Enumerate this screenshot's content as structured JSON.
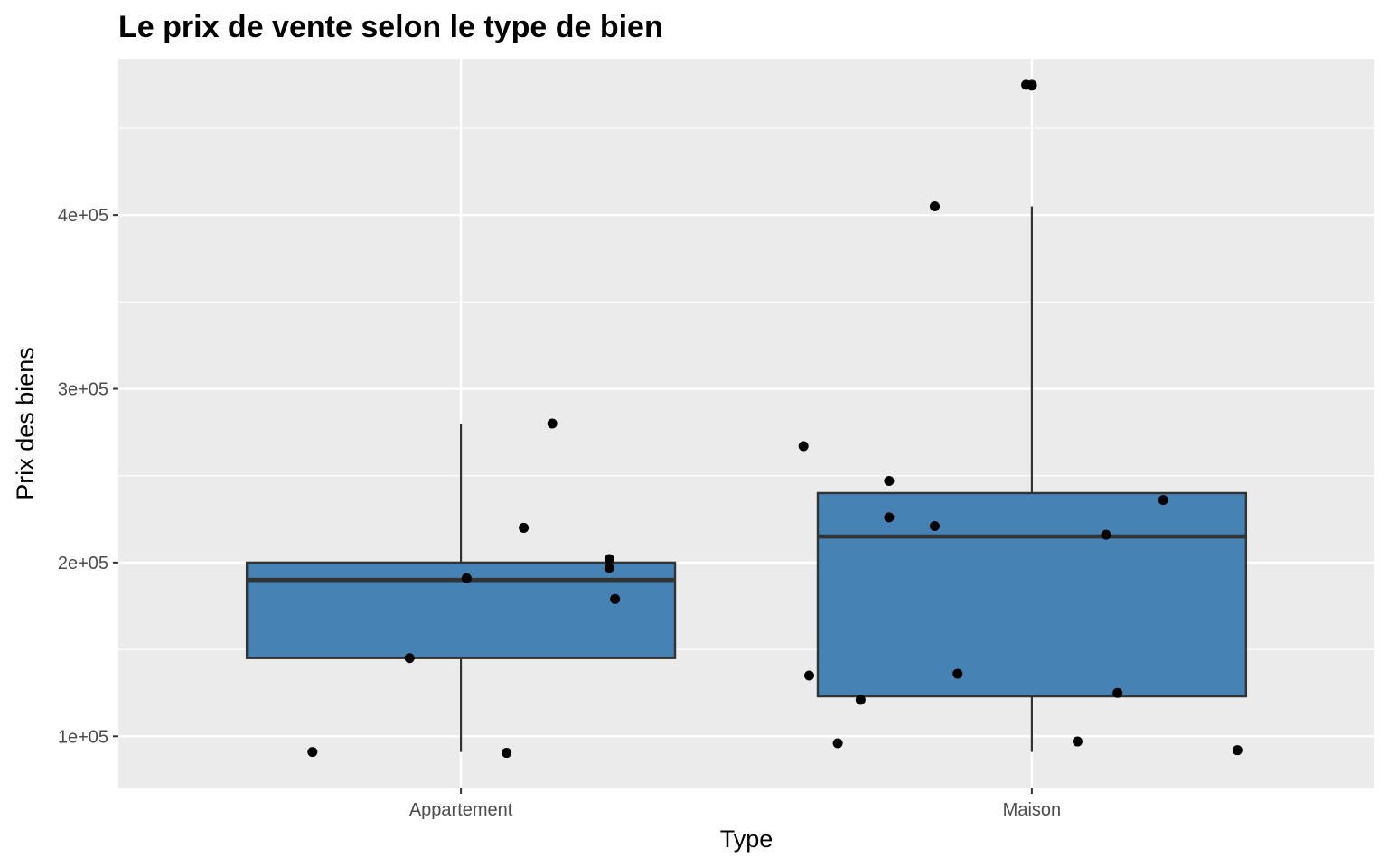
{
  "chart_data": {
    "type": "boxplot",
    "title": "Le prix de vente selon le type de bien",
    "xlabel": "Type",
    "ylabel": "Prix des biens",
    "categories": [
      "Appartement",
      "Maison"
    ],
    "ylim": [
      70000,
      490000
    ],
    "y_ticks": [
      100000,
      200000,
      300000,
      400000
    ],
    "y_tick_labels": [
      "1e+05",
      "2e+05",
      "3e+05",
      "4e+05"
    ],
    "grid": true,
    "legend": "none",
    "colors": {
      "panel_background": "#EBEBEB",
      "grid": "#FFFFFF",
      "box_fill": "#4682B4",
      "box_outline": "#333333",
      "points": "#000000"
    },
    "boxes": [
      {
        "category": "Appartement",
        "lower_whisker": 91000,
        "q1": 145000,
        "median": 190000,
        "q3": 200000,
        "upper_whisker": 280000,
        "outliers": []
      },
      {
        "category": "Maison",
        "lower_whisker": 91000,
        "q1": 123000,
        "median": 215000,
        "q3": 240000,
        "upper_whisker": 405000,
        "outliers": [
          475000,
          475000
        ]
      }
    ],
    "points": [
      {
        "category": "Appartement",
        "x": 0.74,
        "y": 91000
      },
      {
        "category": "Appartement",
        "x": 0.91,
        "y": 145000
      },
      {
        "category": "Appartement",
        "x": 1.01,
        "y": 191000
      },
      {
        "category": "Appartement",
        "x": 1.08,
        "y": 90500
      },
      {
        "category": "Appartement",
        "x": 1.11,
        "y": 220000
      },
      {
        "category": "Appartement",
        "x": 1.16,
        "y": 280000
      },
      {
        "category": "Appartement",
        "x": 1.26,
        "y": 202000
      },
      {
        "category": "Appartement",
        "x": 1.26,
        "y": 197000
      },
      {
        "category": "Appartement",
        "x": 1.27,
        "y": 179000
      },
      {
        "category": "Maison",
        "x": 1.6,
        "y": 267000
      },
      {
        "category": "Maison",
        "x": 1.61,
        "y": 135000
      },
      {
        "category": "Maison",
        "x": 1.66,
        "y": 96000
      },
      {
        "category": "Maison",
        "x": 1.7,
        "y": 121000
      },
      {
        "category": "Maison",
        "x": 1.75,
        "y": 226000
      },
      {
        "category": "Maison",
        "x": 1.75,
        "y": 247000
      },
      {
        "category": "Maison",
        "x": 1.83,
        "y": 405000
      },
      {
        "category": "Maison",
        "x": 1.83,
        "y": 221000
      },
      {
        "category": "Maison",
        "x": 1.87,
        "y": 136000
      },
      {
        "category": "Maison",
        "x": 1.99,
        "y": 475000
      },
      {
        "category": "Maison",
        "x": 2.0,
        "y": 474500
      },
      {
        "category": "Maison",
        "x": 2.08,
        "y": 97000
      },
      {
        "category": "Maison",
        "x": 2.13,
        "y": 216000
      },
      {
        "category": "Maison",
        "x": 2.15,
        "y": 125000
      },
      {
        "category": "Maison",
        "x": 2.23,
        "y": 236000
      },
      {
        "category": "Maison",
        "x": 2.36,
        "y": 92000
      }
    ]
  }
}
